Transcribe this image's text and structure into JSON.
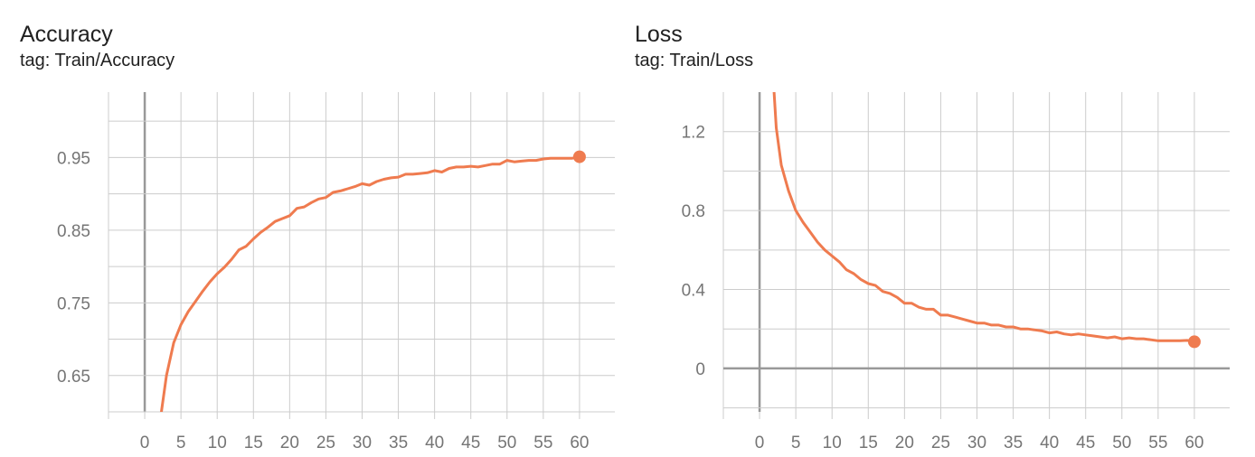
{
  "colors": {
    "series": "#ef7b4f",
    "grid": "#cccccc",
    "axis": "#999999",
    "tick_text": "#757575"
  },
  "chart_data": [
    {
      "type": "line",
      "title": "Accuracy",
      "subtitle": "tag: Train/Accuracy",
      "xlim": [
        -5,
        65
      ],
      "ylim": [
        0.6,
        1.04
      ],
      "x_major_ticks": [
        0,
        5,
        10,
        15,
        20,
        25,
        30,
        35,
        40,
        45,
        50,
        55,
        60
      ],
      "x_gridlines": [
        -5,
        0,
        5,
        10,
        15,
        20,
        25,
        30,
        35,
        40,
        45,
        50,
        55,
        60,
        65
      ],
      "y_major_ticks": [
        0.65,
        0.75,
        0.85,
        0.95
      ],
      "y_tick_labels": [
        "0.65",
        "0.75",
        "0.85",
        "0.95"
      ],
      "y_gridlines": [
        0.6,
        0.65,
        0.7,
        0.75,
        0.8,
        0.85,
        0.9,
        0.95,
        1.0
      ],
      "grid": true,
      "series": [
        {
          "x": [
            2.3,
            3,
            4,
            5,
            6,
            7,
            8,
            9,
            10,
            11,
            12,
            13,
            14,
            15,
            16,
            17,
            18,
            19,
            20,
            21,
            22,
            23,
            24,
            25,
            26,
            27,
            28,
            29,
            30,
            31,
            32,
            33,
            34,
            35,
            36,
            37,
            38,
            39,
            40,
            41,
            42,
            43,
            44,
            45,
            46,
            47,
            48,
            49,
            50,
            51,
            52,
            53,
            54,
            55,
            56,
            57,
            58,
            59,
            60
          ],
          "y": [
            0.6,
            0.65,
            0.695,
            0.72,
            0.738,
            0.752,
            0.766,
            0.779,
            0.79,
            0.799,
            0.81,
            0.823,
            0.828,
            0.838,
            0.847,
            0.854,
            0.862,
            0.866,
            0.87,
            0.88,
            0.882,
            0.888,
            0.893,
            0.895,
            0.902,
            0.904,
            0.907,
            0.91,
            0.914,
            0.912,
            0.917,
            0.92,
            0.922,
            0.923,
            0.927,
            0.927,
            0.928,
            0.929,
            0.932,
            0.93,
            0.935,
            0.937,
            0.937,
            0.938,
            0.937,
            0.939,
            0.941,
            0.941,
            0.946,
            0.944,
            0.945,
            0.946,
            0.946,
            0.948,
            0.949,
            0.949,
            0.949,
            0.949,
            0.951
          ]
        }
      ]
    },
    {
      "type": "line",
      "title": "Loss",
      "subtitle": "tag: Train/Loss",
      "xlim": [
        -5,
        65
      ],
      "ylim": [
        -0.22,
        1.4
      ],
      "x_major_ticks": [
        0,
        5,
        10,
        15,
        20,
        25,
        30,
        35,
        40,
        45,
        50,
        55,
        60
      ],
      "x_gridlines": [
        -5,
        0,
        5,
        10,
        15,
        20,
        25,
        30,
        35,
        40,
        45,
        50,
        55,
        60,
        65
      ],
      "y_major_ticks": [
        0,
        0.4,
        0.8,
        1.2
      ],
      "y_tick_labels": [
        "0",
        "0.4",
        "0.8",
        "1.2"
      ],
      "y_gridlines": [
        -0.2,
        0,
        0.2,
        0.4,
        0.6,
        0.8,
        1.0,
        1.2
      ],
      "grid": true,
      "series": [
        {
          "x": [
            2.0,
            2.3,
            3,
            4,
            5,
            6,
            7,
            8,
            9,
            10,
            11,
            12,
            13,
            14,
            15,
            16,
            17,
            18,
            19,
            20,
            21,
            22,
            23,
            24,
            25,
            26,
            27,
            28,
            29,
            30,
            31,
            32,
            33,
            34,
            35,
            36,
            37,
            38,
            39,
            40,
            41,
            42,
            43,
            44,
            45,
            46,
            47,
            48,
            49,
            50,
            51,
            52,
            53,
            54,
            55,
            56,
            57,
            58,
            59,
            60
          ],
          "y": [
            1.4,
            1.22,
            1.03,
            0.9,
            0.8,
            0.74,
            0.69,
            0.64,
            0.6,
            0.57,
            0.54,
            0.5,
            0.48,
            0.45,
            0.43,
            0.42,
            0.39,
            0.38,
            0.36,
            0.33,
            0.33,
            0.31,
            0.3,
            0.3,
            0.27,
            0.27,
            0.26,
            0.25,
            0.24,
            0.23,
            0.23,
            0.22,
            0.22,
            0.21,
            0.21,
            0.2,
            0.2,
            0.195,
            0.19,
            0.18,
            0.185,
            0.175,
            0.17,
            0.175,
            0.17,
            0.165,
            0.16,
            0.155,
            0.16,
            0.15,
            0.155,
            0.15,
            0.15,
            0.145,
            0.14,
            0.14,
            0.14,
            0.14,
            0.142,
            0.135
          ]
        }
      ]
    }
  ]
}
